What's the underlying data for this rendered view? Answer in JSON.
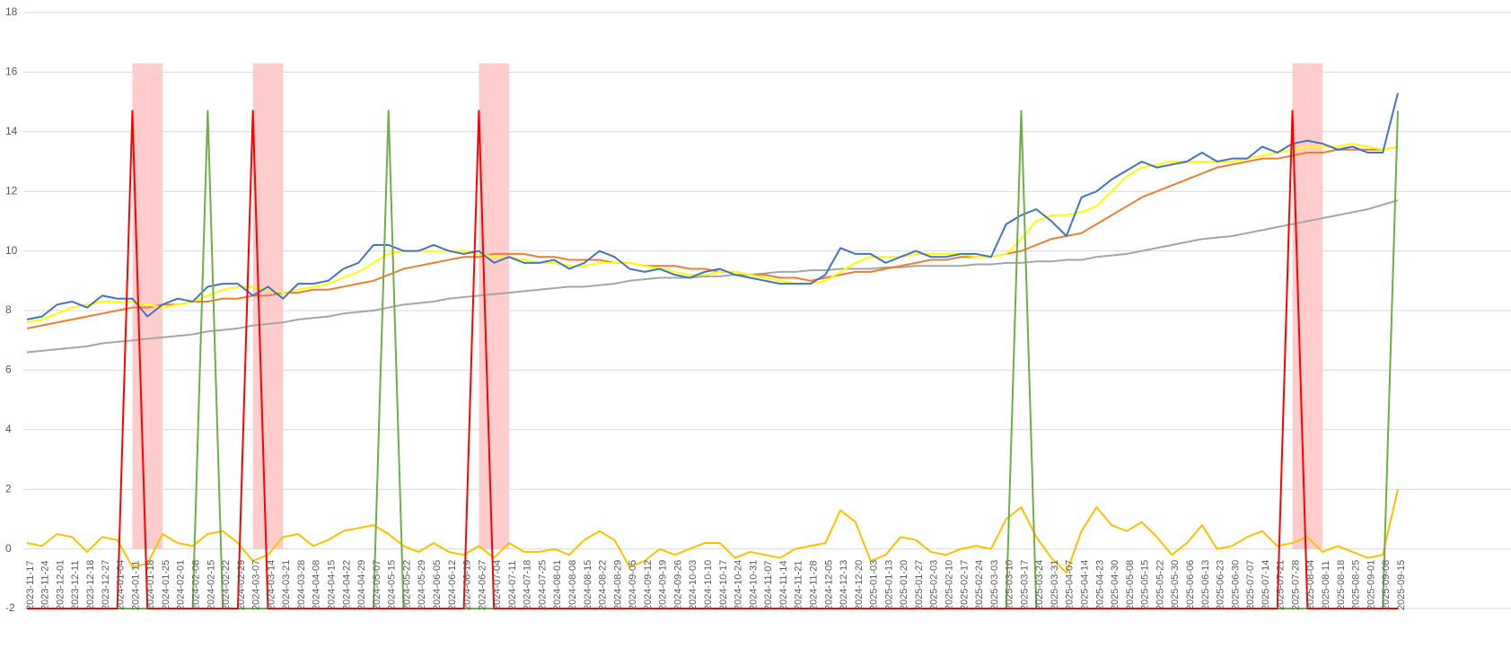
{
  "chart_data": {
    "type": "line",
    "categories": [
      "2023-11-17",
      "2023-11-24",
      "2023-12-01",
      "2023-12-11",
      "2023-12-18",
      "2023-12-27",
      "2024-01-04",
      "2024-01-11",
      "2024-01-18",
      "2024-01-25",
      "2024-02-01",
      "2024-02-08",
      "2024-02-15",
      "2024-02-22",
      "2024-02-29",
      "2024-03-07",
      "2024-03-14",
      "2024-03-21",
      "2024-03-28",
      "2024-04-08",
      "2024-04-15",
      "2024-04-22",
      "2024-04-29",
      "2024-05-07",
      "2024-05-15",
      "2024-05-22",
      "2024-05-29",
      "2024-06-05",
      "2024-06-12",
      "2024-06-19",
      "2024-06-27",
      "2024-07-04",
      "2024-07-11",
      "2024-07-18",
      "2024-07-25",
      "2024-08-01",
      "2024-08-08",
      "2024-08-15",
      "2024-08-22",
      "2024-08-29",
      "2024-09-05",
      "2024-09-12",
      "2024-09-19",
      "2024-09-26",
      "2024-10-03",
      "2024-10-10",
      "2024-10-17",
      "2024-10-24",
      "2024-10-31",
      "2024-11-07",
      "2024-11-14",
      "2024-11-21",
      "2024-11-28",
      "2024-12-05",
      "2024-12-13",
      "2024-12-20",
      "2025-01-03",
      "2025-01-13",
      "2025-01-20",
      "2025-01-27",
      "2025-02-03",
      "2025-02-10",
      "2025-02-17",
      "2025-02-24",
      "2025-03-03",
      "2025-03-10",
      "2025-03-17",
      "2025-03-24",
      "2025-03-31",
      "2025-04-07",
      "2025-04-14",
      "2025-04-23",
      "2025-04-30",
      "2025-05-08",
      "2025-05-15",
      "2025-05-22",
      "2025-05-30",
      "2025-06-06",
      "2025-06-13",
      "2025-06-23",
      "2025-06-30",
      "2025-07-07",
      "2025-07-14",
      "2025-07-21",
      "2025-07-28",
      "2025-08-04",
      "2025-08-11",
      "2025-08-18",
      "2025-08-25",
      "2025-09-01",
      "2025-09-08",
      "2025-09-15"
    ],
    "series": [
      {
        "kind": "column",
        "color": "#ffcccc",
        "values": [
          null,
          null,
          null,
          null,
          null,
          null,
          null,
          16.3,
          16.3,
          null,
          null,
          null,
          null,
          null,
          null,
          16.3,
          16.3,
          null,
          null,
          null,
          null,
          null,
          null,
          null,
          null,
          null,
          null,
          null,
          null,
          null,
          16.3,
          16.3,
          null,
          null,
          null,
          null,
          null,
          null,
          null,
          null,
          null,
          null,
          null,
          null,
          null,
          null,
          null,
          null,
          null,
          null,
          null,
          null,
          null,
          null,
          null,
          null,
          null,
          null,
          null,
          null,
          null,
          null,
          null,
          null,
          null,
          null,
          null,
          null,
          null,
          null,
          null,
          null,
          null,
          null,
          null,
          null,
          null,
          null,
          null,
          null,
          null,
          null,
          null,
          null,
          16.3,
          16.3,
          null,
          null,
          null,
          null,
          null,
          null
        ]
      },
      {
        "kind": "line",
        "color": "#a5a5a5",
        "values": [
          6.6,
          6.65,
          6.7,
          6.75,
          6.8,
          6.9,
          6.95,
          7.0,
          7.05,
          7.1,
          7.15,
          7.2,
          7.3,
          7.35,
          7.4,
          7.5,
          7.55,
          7.6,
          7.7,
          7.75,
          7.8,
          7.9,
          7.95,
          8.0,
          8.1,
          8.2,
          8.25,
          8.3,
          8.4,
          8.45,
          8.5,
          8.55,
          8.6,
          8.65,
          8.7,
          8.75,
          8.8,
          8.8,
          8.85,
          8.9,
          9.0,
          9.05,
          9.1,
          9.1,
          9.1,
          9.15,
          9.15,
          9.2,
          9.2,
          9.25,
          9.3,
          9.3,
          9.35,
          9.35,
          9.4,
          9.4,
          9.4,
          9.45,
          9.45,
          9.5,
          9.5,
          9.5,
          9.5,
          9.55,
          9.55,
          9.6,
          9.6,
          9.65,
          9.65,
          9.7,
          9.7,
          9.8,
          9.85,
          9.9,
          10.0,
          10.1,
          10.2,
          10.3,
          10.4,
          10.45,
          10.5,
          10.6,
          10.7,
          10.8,
          10.9,
          11.0,
          11.1,
          11.2,
          11.3,
          11.4,
          11.55,
          11.7
        ]
      },
      {
        "kind": "line",
        "color": "#ed7d31",
        "values": [
          7.4,
          7.5,
          7.6,
          7.7,
          7.8,
          7.9,
          8.0,
          8.1,
          8.1,
          8.2,
          8.2,
          8.3,
          8.3,
          8.4,
          8.4,
          8.5,
          8.5,
          8.6,
          8.6,
          8.7,
          8.7,
          8.8,
          8.9,
          9.0,
          9.2,
          9.4,
          9.5,
          9.6,
          9.7,
          9.8,
          9.8,
          9.9,
          9.9,
          9.9,
          9.8,
          9.8,
          9.7,
          9.7,
          9.7,
          9.6,
          9.6,
          9.5,
          9.5,
          9.5,
          9.4,
          9.4,
          9.3,
          9.3,
          9.2,
          9.2,
          9.1,
          9.1,
          9.0,
          9.1,
          9.2,
          9.3,
          9.3,
          9.4,
          9.5,
          9.6,
          9.7,
          9.7,
          9.8,
          9.8,
          9.8,
          9.9,
          10.0,
          10.2,
          10.4,
          10.5,
          10.6,
          10.9,
          11.2,
          11.5,
          11.8,
          12.0,
          12.2,
          12.4,
          12.6,
          12.8,
          12.9,
          13.0,
          13.1,
          13.1,
          13.2,
          13.3,
          13.3,
          13.4,
          13.4,
          13.4,
          13.4,
          13.5
        ]
      },
      {
        "kind": "line",
        "color": "#ffff00",
        "values": [
          7.6,
          7.7,
          7.9,
          8.1,
          8.2,
          8.3,
          8.3,
          8.3,
          8.2,
          8.1,
          8.2,
          8.3,
          8.5,
          8.7,
          8.8,
          8.8,
          8.7,
          8.6,
          8.7,
          8.8,
          8.9,
          9.1,
          9.3,
          9.6,
          9.9,
          10.0,
          10.0,
          10.0,
          10.0,
          10.0,
          9.9,
          9.8,
          9.8,
          9.7,
          9.6,
          9.6,
          9.5,
          9.5,
          9.6,
          9.6,
          9.6,
          9.5,
          9.4,
          9.3,
          9.2,
          9.2,
          9.3,
          9.3,
          9.2,
          9.1,
          9.0,
          8.9,
          8.9,
          9.0,
          9.3,
          9.6,
          9.8,
          9.8,
          9.8,
          9.9,
          9.9,
          9.9,
          9.9,
          9.8,
          9.8,
          9.9,
          10.4,
          11.0,
          11.2,
          11.2,
          11.3,
          11.5,
          12.0,
          12.5,
          12.8,
          12.9,
          13.0,
          13.0,
          13.0,
          13.0,
          13.0,
          13.1,
          13.2,
          13.3,
          13.4,
          13.5,
          13.5,
          13.5,
          13.6,
          13.5,
          13.4,
          13.5
        ]
      },
      {
        "kind": "line",
        "color": "#4472c4",
        "values": [
          7.7,
          7.8,
          8.2,
          8.3,
          8.1,
          8.5,
          8.4,
          8.4,
          7.8,
          8.2,
          8.4,
          8.3,
          8.8,
          8.9,
          8.9,
          8.5,
          8.8,
          8.4,
          8.9,
          8.9,
          9.0,
          9.4,
          9.6,
          10.2,
          10.2,
          10.0,
          10.0,
          10.2,
          10.0,
          9.9,
          10.0,
          9.6,
          9.8,
          9.6,
          9.6,
          9.7,
          9.4,
          9.6,
          10.0,
          9.8,
          9.4,
          9.3,
          9.4,
          9.2,
          9.1,
          9.3,
          9.4,
          9.2,
          9.1,
          9.0,
          8.9,
          8.9,
          8.9,
          9.2,
          10.1,
          9.9,
          9.9,
          9.6,
          9.8,
          10.0,
          9.8,
          9.8,
          9.9,
          9.9,
          9.8,
          10.9,
          11.2,
          11.4,
          11.0,
          10.5,
          11.8,
          12.0,
          12.4,
          12.7,
          13.0,
          12.8,
          12.9,
          13.0,
          13.3,
          13.0,
          13.1,
          13.1,
          13.5,
          13.3,
          13.6,
          13.7,
          13.6,
          13.4,
          13.5,
          13.3,
          13.3,
          15.3
        ]
      },
      {
        "kind": "line",
        "color": "#ffc000",
        "values": [
          0.2,
          0.1,
          0.5,
          0.4,
          -0.1,
          0.4,
          0.3,
          -0.6,
          -0.5,
          0.5,
          0.2,
          0.1,
          0.5,
          0.6,
          0.2,
          -0.4,
          -0.2,
          0.4,
          0.5,
          0.1,
          0.3,
          0.6,
          0.7,
          0.8,
          0.5,
          0.1,
          -0.1,
          0.2,
          -0.1,
          -0.2,
          0.1,
          -0.3,
          0.2,
          -0.1,
          -0.1,
          0.0,
          -0.2,
          0.3,
          0.6,
          0.3,
          -0.6,
          -0.4,
          0.0,
          -0.2,
          0.0,
          0.2,
          0.2,
          -0.3,
          -0.1,
          -0.2,
          -0.3,
          0.0,
          0.1,
          0.2,
          1.3,
          0.9,
          -0.4,
          -0.2,
          0.4,
          0.3,
          -0.1,
          -0.2,
          0.0,
          0.1,
          0.0,
          1.0,
          1.4,
          0.4,
          -0.3,
          -0.8,
          0.6,
          1.4,
          0.8,
          0.6,
          0.9,
          0.4,
          -0.2,
          0.2,
          0.8,
          0.0,
          0.1,
          0.4,
          0.6,
          0.1,
          0.2,
          0.4,
          -0.1,
          0.1,
          -0.1,
          -0.3,
          -0.2,
          2.0
        ]
      },
      {
        "kind": "line",
        "color": "#70ad47",
        "values": [
          -2,
          -2,
          -2,
          -2,
          -2,
          -2,
          -2,
          -2,
          -2,
          -2,
          -2,
          -2,
          14.7,
          -2,
          -2,
          -2,
          -2,
          -2,
          -2,
          -2,
          -2,
          -2,
          -2,
          -2,
          14.7,
          -2,
          -2,
          -2,
          -2,
          -2,
          -2,
          -2,
          -2,
          -2,
          -2,
          -2,
          -2,
          -2,
          -2,
          -2,
          -2,
          -2,
          -2,
          -2,
          -2,
          -2,
          -2,
          -2,
          -2,
          -2,
          -2,
          -2,
          -2,
          -2,
          -2,
          -2,
          -2,
          -2,
          -2,
          -2,
          -2,
          -2,
          -2,
          -2,
          -2,
          -2,
          14.7,
          -2,
          -2,
          -2,
          -2,
          -2,
          -2,
          -2,
          -2,
          -2,
          -2,
          -2,
          -2,
          -2,
          -2,
          -2,
          -2,
          -2,
          -2,
          -2,
          -2,
          -2,
          -2,
          -2,
          -2,
          14.7
        ]
      },
      {
        "kind": "line",
        "color": "#ff0000",
        "values": [
          -2,
          -2,
          -2,
          -2,
          -2,
          -2,
          -2,
          14.7,
          -2,
          -2,
          -2,
          -2,
          -2,
          -2,
          -2,
          14.7,
          -2,
          -2,
          -2,
          -2,
          -2,
          -2,
          -2,
          -2,
          -2,
          -2,
          -2,
          -2,
          -2,
          -2,
          14.7,
          -2,
          -2,
          -2,
          -2,
          -2,
          -2,
          -2,
          -2,
          -2,
          -2,
          -2,
          -2,
          -2,
          -2,
          -2,
          -2,
          -2,
          -2,
          -2,
          -2,
          -2,
          -2,
          -2,
          -2,
          -2,
          -2,
          -2,
          -2,
          -2,
          -2,
          -2,
          -2,
          -2,
          -2,
          -2,
          -2,
          -2,
          -2,
          -2,
          -2,
          -2,
          -2,
          -2,
          -2,
          -2,
          -2,
          -2,
          -2,
          -2,
          -2,
          -2,
          -2,
          -2,
          14.7,
          -2,
          -2,
          -2,
          -2,
          -2,
          -2,
          -2
        ]
      }
    ],
    "ylim": [
      -2,
      18
    ],
    "yticks": [
      -2,
      0,
      2,
      4,
      6,
      8,
      10,
      12,
      14,
      16,
      18
    ],
    "grid": true
  }
}
